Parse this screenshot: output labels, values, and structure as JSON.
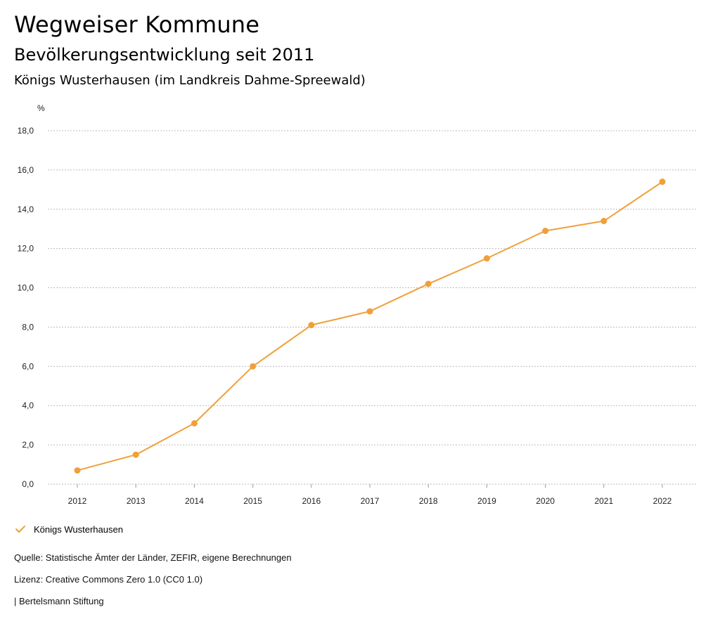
{
  "header": {
    "title": "Wegweiser Kommune",
    "subtitle": "Bevölkerungsentwicklung seit 2011",
    "region": "Königs Wusterhausen (im Landkreis Dahme-Spreewald)"
  },
  "footer": {
    "source": "Quelle: Statistische Ämter der Länder, ZEFIR, eigene Berechnungen",
    "license": "Lizenz: Creative Commons Zero 1.0 (CC0 1.0)",
    "publisher": "| Bertelsmann Stiftung"
  },
  "colors": {
    "series": "#F0A03A",
    "grid": "#BBBBBB"
  },
  "chart_data": {
    "type": "line",
    "ylabel": "%",
    "ylim": [
      0,
      18
    ],
    "yticks": [
      "0,0",
      "2,0",
      "4,0",
      "6,0",
      "8,0",
      "10,0",
      "12,0",
      "14,0",
      "16,0",
      "18,0"
    ],
    "categories": [
      "2012",
      "2013",
      "2014",
      "2015",
      "2016",
      "2017",
      "2018",
      "2019",
      "2020",
      "2021",
      "2022"
    ],
    "series": [
      {
        "name": "Königs Wusterhausen",
        "values": [
          0.7,
          1.5,
          3.1,
          6.0,
          8.1,
          8.8,
          10.2,
          11.5,
          12.9,
          13.4,
          15.4
        ]
      }
    ],
    "grid": true,
    "legend": "bottom-left"
  }
}
